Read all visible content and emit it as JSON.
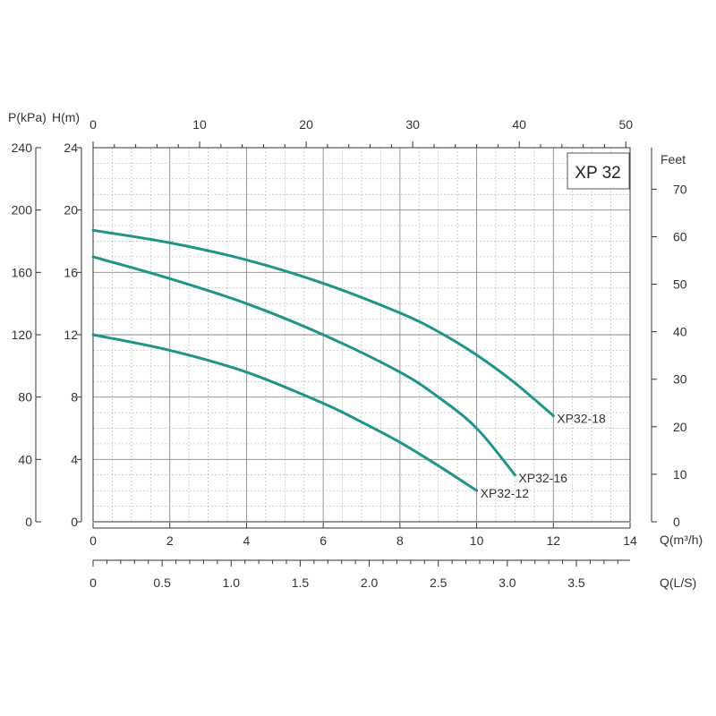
{
  "chart_data": {
    "type": "line",
    "title": "XP 32",
    "colors": {
      "curve": "#1f9488"
    },
    "xlabel": "Q(m³/h)",
    "ylabel": "H(m)",
    "xlim": [
      0,
      14
    ],
    "ylim": [
      0,
      24
    ],
    "x_ticks": [
      0,
      2,
      4,
      6,
      8,
      10,
      12,
      14
    ],
    "y_ticks": [
      0,
      4,
      8,
      12,
      16,
      20,
      24
    ],
    "grid": true,
    "axes": {
      "pressure": {
        "label": "P(kPa)",
        "ticks": [
          0,
          40,
          80,
          120,
          160,
          200,
          240
        ],
        "per_unit_of_head": 10
      },
      "feet": {
        "label": "Feet",
        "ticks": [
          0,
          10,
          20,
          30,
          40,
          50,
          60,
          70
        ],
        "per_unit_of_head": 3.2808
      },
      "top_flow": {
        "ticks": [
          0,
          10,
          20,
          30,
          40,
          50
        ],
        "per_unit_of_q": 3.6
      },
      "lps": {
        "label": "Q(L/S)",
        "ticks": [
          "0",
          "0.5",
          "1.0",
          "1.5",
          "2.0",
          "2.5",
          "3.0",
          "3.5"
        ],
        "per_unit_of_q": 0.27778
      }
    },
    "series": [
      {
        "name": "XP32-18",
        "x": [
          0,
          2,
          4,
          6,
          8,
          9,
          10,
          11,
          12
        ],
        "y": [
          18.7,
          17.9,
          16.8,
          15.3,
          13.4,
          12.2,
          10.7,
          8.9,
          6.8
        ]
      },
      {
        "name": "XP32-16",
        "x": [
          0,
          2,
          4,
          6,
          8,
          9,
          10,
          11
        ],
        "y": [
          17,
          15.6,
          14,
          12,
          9.6,
          8,
          6,
          3
        ]
      },
      {
        "name": "XP32-12",
        "x": [
          0,
          2,
          4,
          6,
          7,
          8,
          9,
          10
        ],
        "y": [
          12,
          11,
          9.6,
          7.6,
          6.4,
          5.1,
          3.6,
          2
        ]
      }
    ]
  }
}
